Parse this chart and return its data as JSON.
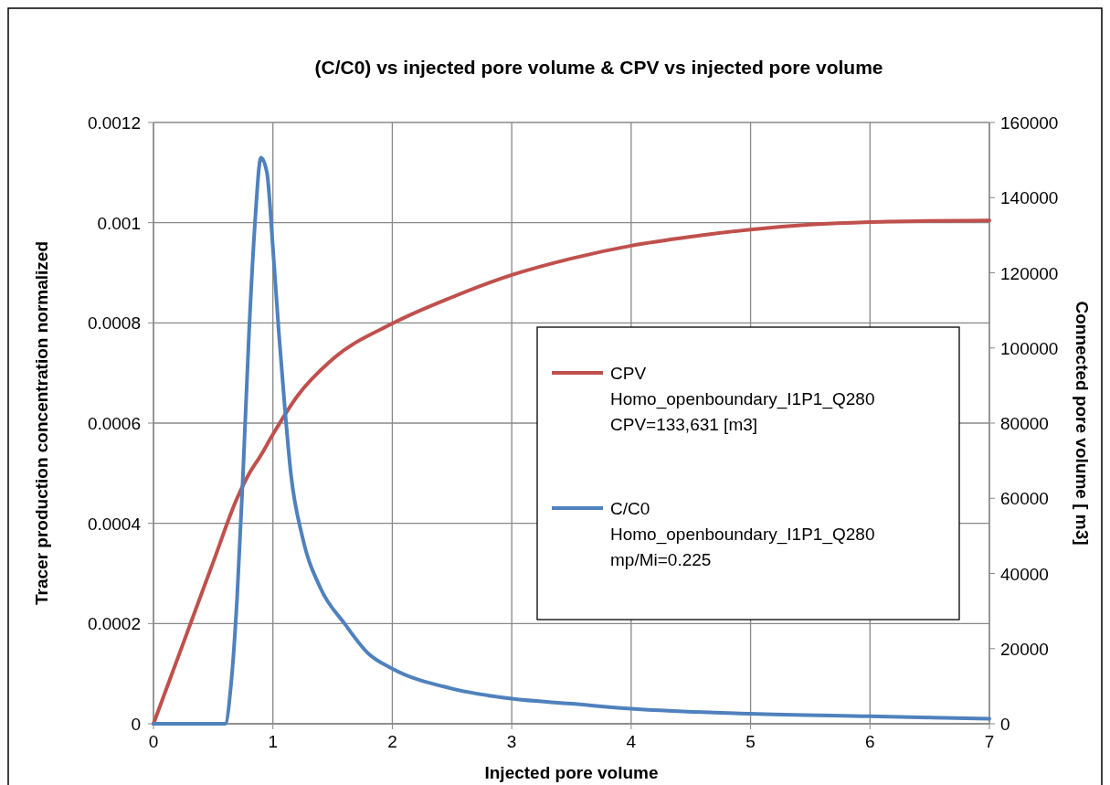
{
  "chart_data": {
    "type": "line",
    "title": "(C/C0) vs injected pore volume  & CPV vs injected pore volume",
    "xlabel": "Injected pore volume",
    "ylabel": "Tracer production concentration normalized",
    "y2label": "Connected pore volume [ m3]",
    "xlim": [
      0,
      7
    ],
    "xticks": [
      0,
      1,
      2,
      3,
      4,
      5,
      6,
      7
    ],
    "ylim": [
      0,
      0.0012
    ],
    "yticks": [
      0,
      0.0002,
      0.0004,
      0.0006,
      0.0008,
      0.001,
      0.0012
    ],
    "y2lim": [
      0,
      160000
    ],
    "y2ticks": [
      0,
      20000,
      40000,
      60000,
      80000,
      100000,
      120000,
      140000,
      160000
    ],
    "grid": true,
    "legend": "right",
    "marker": "none",
    "line_style": "solid",
    "series": [
      {
        "name": "CPV\nHomo_openboundary_I1P1_Q280\nCPV=133,631 [m3]",
        "color": "#c0504d",
        "axis": "y2",
        "x": [
          0,
          0.25,
          0.5,
          0.7,
          0.8,
          0.9,
          1,
          1.2,
          1.5,
          2,
          2.5,
          3,
          3.5,
          4,
          4.5,
          5,
          5.5,
          6,
          6.5,
          7
        ],
        "values": [
          0,
          21500,
          43000,
          60000,
          66500,
          71500,
          77000,
          87000,
          97000,
          106500,
          113500,
          119400,
          123800,
          127200,
          129600,
          131500,
          132800,
          133500,
          133800,
          133900
        ]
      },
      {
        "name": "C/C0\nHomo_openboundary_I1P1_Q280\nmp/Mi=0.225",
        "color": "#4f81bd",
        "axis": "y",
        "x": [
          0,
          0.55,
          0.6,
          0.65,
          0.7,
          0.75,
          0.8,
          0.85,
          0.9,
          0.95,
          1,
          1.05,
          1.1,
          1.15,
          1.25,
          1.4,
          1.6,
          1.8,
          2,
          2.5,
          3,
          3.5,
          4,
          5,
          6,
          7
        ],
        "values": [
          0,
          0,
          0,
          8e-05,
          0.00025,
          0.0005,
          0.00078,
          0.001,
          0.00113,
          0.0011,
          0.00095,
          0.00078,
          0.00063,
          0.0005,
          0.00037,
          0.00027,
          0.0002,
          0.00014,
          0.00011,
          7e-05,
          5e-05,
          4e-05,
          3e-05,
          2e-05,
          1.5e-05,
          1e-05
        ]
      }
    ]
  }
}
